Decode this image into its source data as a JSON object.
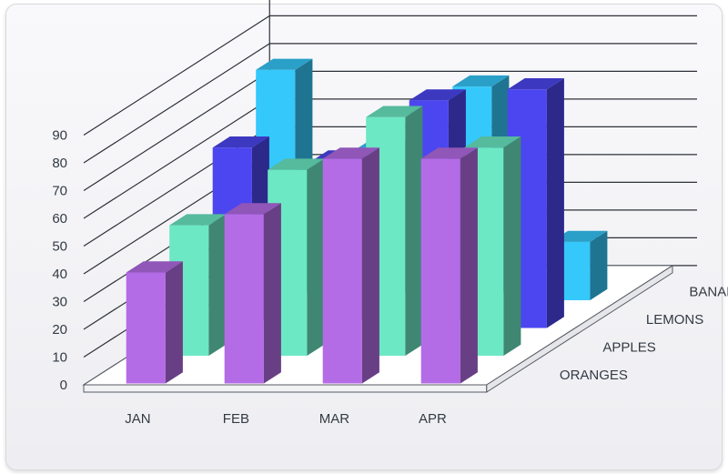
{
  "chart_data": {
    "type": "bar",
    "variant": "3d",
    "title": "",
    "xlabel": "",
    "ylabel": "",
    "ylim": [
      0,
      90
    ],
    "yticks": [
      0,
      10,
      20,
      30,
      40,
      50,
      60,
      70,
      80,
      90
    ],
    "grid": true,
    "categories": [
      "JAN",
      "FEB",
      "MAR",
      "APR"
    ],
    "series": [
      {
        "name": "ORANGES",
        "color": "#b46ce6",
        "values": [
          40,
          61,
          81,
          81
        ]
      },
      {
        "name": "APPLES",
        "color": "#6ce8c4",
        "values": [
          47,
          67,
          86,
          75
        ]
      },
      {
        "name": "LEMONS",
        "color": "#4b46f0",
        "values": [
          65,
          60,
          82,
          86
        ]
      },
      {
        "name": "BANANAS",
        "color": "#35c8fa",
        "values": [
          83,
          54,
          77,
          21
        ]
      }
    ]
  }
}
